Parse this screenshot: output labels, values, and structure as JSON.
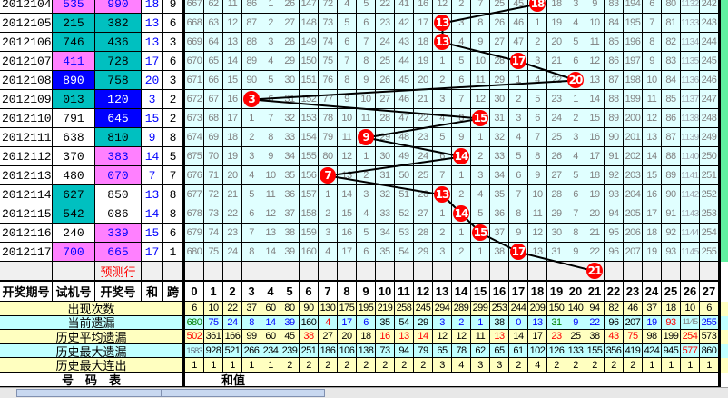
{
  "colors": {
    "pink": "#ff80ff",
    "teal": "#00c0c0",
    "blue": "#0000ff",
    "white": "#ffffff",
    "ball": "#ff0000",
    "grid_bg": "#e0ffff",
    "stat_yellow": "#ffffc0",
    "stat_cyan": "#c0ffff",
    "right_strip": "#60f0a0"
  },
  "rows": [
    {
      "period": "2012104",
      "trial": "535",
      "trial_color": "pink",
      "draw": "990",
      "draw_color": "pink",
      "sum": "18",
      "span": "9"
    },
    {
      "period": "2012105",
      "trial": "215",
      "trial_color": "teal",
      "draw": "382",
      "draw_color": "teal",
      "sum": "13",
      "span": "6"
    },
    {
      "period": "2012106",
      "trial": "746",
      "trial_color": "teal",
      "draw": "436",
      "draw_color": "teal",
      "sum": "13",
      "span": "3"
    },
    {
      "period": "2012107",
      "trial": "411",
      "trial_color": "pink",
      "draw": "728",
      "draw_color": "teal",
      "sum": "17",
      "span": "6"
    },
    {
      "period": "2012108",
      "trial": "890",
      "trial_color": "blue",
      "draw": "758",
      "draw_color": "teal",
      "sum": "20",
      "span": "3"
    },
    {
      "period": "2012109",
      "trial": "013",
      "trial_color": "teal",
      "draw": "120",
      "draw_color": "blue",
      "sum": "3",
      "span": "2"
    },
    {
      "period": "2012110",
      "trial": "791",
      "trial_color": "white",
      "draw": "645",
      "draw_color": "blue",
      "sum": "15",
      "span": "2"
    },
    {
      "period": "2012111",
      "trial": "638",
      "trial_color": "white",
      "draw": "810",
      "draw_color": "teal",
      "sum": "9",
      "span": "8"
    },
    {
      "period": "2012112",
      "trial": "370",
      "trial_color": "white",
      "draw": "383",
      "draw_color": "pink",
      "sum": "14",
      "span": "5"
    },
    {
      "period": "2012113",
      "trial": "480",
      "trial_color": "white",
      "draw": "070",
      "draw_color": "pink",
      "sum": "7",
      "span": "7"
    },
    {
      "period": "2012114",
      "trial": "627",
      "trial_color": "teal",
      "draw": "850",
      "draw_color": "white",
      "sum": "13",
      "span": "8"
    },
    {
      "period": "2012115",
      "trial": "542",
      "trial_color": "teal",
      "draw": "086",
      "draw_color": "white",
      "sum": "14",
      "span": "8"
    },
    {
      "period": "2012116",
      "trial": "240",
      "trial_color": "white",
      "draw": "339",
      "draw_color": "pink",
      "sum": "15",
      "span": "6"
    },
    {
      "period": "2012117",
      "trial": "700",
      "trial_color": "pink",
      "draw": "665",
      "draw_color": "pink",
      "sum": "17",
      "span": "1"
    }
  ],
  "grid": [
    [
      667,
      62,
      11,
      86,
      1,
      26,
      147,
      72,
      4,
      5,
      22,
      41,
      16,
      12,
      2,
      7,
      25,
      45,
      null,
      18,
      3,
      9,
      83,
      194,
      6,
      80,
      1132,
      242
    ],
    [
      668,
      63,
      12,
      87,
      2,
      27,
      148,
      73,
      5,
      6,
      23,
      42,
      17,
      null,
      3,
      8,
      26,
      46,
      1,
      19,
      4,
      10,
      84,
      195,
      7,
      81,
      1133,
      243
    ],
    [
      669,
      64,
      13,
      88,
      3,
      28,
      149,
      74,
      6,
      7,
      24,
      43,
      18,
      null,
      4,
      9,
      27,
      47,
      2,
      20,
      5,
      11,
      85,
      196,
      8,
      82,
      1134,
      244
    ],
    [
      670,
      65,
      14,
      89,
      4,
      29,
      150,
      75,
      7,
      8,
      25,
      44,
      19,
      1,
      5,
      10,
      28,
      null,
      3,
      21,
      6,
      12,
      86,
      197,
      9,
      83,
      1135,
      245
    ],
    [
      671,
      66,
      15,
      90,
      5,
      30,
      151,
      76,
      8,
      9,
      26,
      45,
      20,
      2,
      6,
      11,
      29,
      1,
      4,
      22,
      null,
      13,
      87,
      198,
      10,
      84,
      1136,
      246
    ],
    [
      672,
      67,
      16,
      null,
      6,
      31,
      152,
      77,
      9,
      10,
      27,
      46,
      21,
      3,
      7,
      12,
      30,
      2,
      5,
      23,
      1,
      14,
      88,
      199,
      11,
      85,
      1137,
      247
    ],
    [
      673,
      68,
      17,
      1,
      7,
      32,
      153,
      78,
      10,
      11,
      28,
      47,
      22,
      4,
      8,
      null,
      31,
      3,
      6,
      24,
      2,
      15,
      89,
      200,
      12,
      86,
      1138,
      248
    ],
    [
      674,
      69,
      18,
      2,
      8,
      33,
      154,
      79,
      11,
      null,
      29,
      48,
      23,
      5,
      9,
      1,
      32,
      4,
      7,
      25,
      3,
      16,
      90,
      201,
      13,
      87,
      1139,
      249
    ],
    [
      675,
      70,
      19,
      3,
      9,
      34,
      155,
      80,
      12,
      1,
      30,
      49,
      24,
      6,
      null,
      2,
      33,
      5,
      8,
      26,
      4,
      17,
      91,
      202,
      14,
      88,
      1140,
      250
    ],
    [
      676,
      71,
      20,
      4,
      10,
      35,
      156,
      null,
      13,
      2,
      31,
      50,
      25,
      7,
      1,
      3,
      34,
      6,
      9,
      27,
      5,
      18,
      92,
      203,
      15,
      89,
      1141,
      251
    ],
    [
      677,
      72,
      21,
      5,
      11,
      36,
      157,
      1,
      14,
      3,
      32,
      51,
      26,
      null,
      2,
      4,
      35,
      7,
      10,
      28,
      6,
      19,
      93,
      204,
      16,
      90,
      1142,
      252
    ],
    [
      678,
      73,
      22,
      6,
      12,
      37,
      158,
      2,
      15,
      4,
      33,
      52,
      27,
      1,
      null,
      5,
      36,
      8,
      11,
      29,
      7,
      20,
      94,
      205,
      17,
      91,
      1143,
      253
    ],
    [
      679,
      74,
      23,
      7,
      13,
      38,
      159,
      3,
      16,
      5,
      34,
      53,
      28,
      2,
      1,
      null,
      37,
      9,
      12,
      30,
      8,
      21,
      95,
      206,
      18,
      92,
      1144,
      254
    ],
    [
      680,
      75,
      24,
      8,
      14,
      39,
      160,
      4,
      17,
      6,
      35,
      54,
      29,
      3,
      2,
      1,
      38,
      null,
      13,
      31,
      9,
      22,
      96,
      207,
      19,
      93,
      1145,
      255
    ]
  ],
  "prediction": {
    "label": "预测行",
    "sum": "21"
  },
  "headers": {
    "period": "开奖期号",
    "trial": "试机号",
    "draw": "开奖号",
    "sum": "和",
    "span": "跨",
    "columns": [
      "0",
      "1",
      "2",
      "3",
      "4",
      "5",
      "6",
      "7",
      "8",
      "9",
      "10",
      "11",
      "12",
      "13",
      "14",
      "15",
      "16",
      "17",
      "18",
      "19",
      "20",
      "21",
      "22",
      "23",
      "24",
      "25",
      "26",
      "27"
    ]
  },
  "stats": [
    {
      "label": "出现次数",
      "values": [
        6,
        10,
        22,
        37,
        60,
        80,
        90,
        130,
        175,
        195,
        219,
        258,
        245,
        294,
        289,
        299,
        253,
        244,
        209,
        150,
        140,
        94,
        82,
        46,
        37,
        18,
        10,
        6
      ],
      "colors": []
    },
    {
      "label": "当前遗漏",
      "values": [
        680,
        75,
        24,
        8,
        14,
        39,
        160,
        4,
        17,
        6,
        35,
        54,
        29,
        3,
        2,
        1,
        38,
        0,
        13,
        31,
        9,
        22,
        96,
        207,
        19,
        93,
        1145,
        255
      ],
      "colors": [
        "#008000",
        "#0000ff",
        "#0000ff",
        "#0000ff",
        "#0000ff",
        "#0000ff",
        "#000",
        "#ff0000",
        "#0000ff",
        "#0000ff",
        "#000",
        "#000",
        "#000",
        "#0000ff",
        "#0000ff",
        "#0000ff",
        "#000",
        "#0000ff",
        "#0000ff",
        "#008000",
        "#0000ff",
        "#0000ff",
        "#000",
        "#000",
        "#0000ff",
        "#ff0000",
        "#808080",
        "#0000ff"
      ]
    },
    {
      "label": "历史平均遗漏",
      "values": [
        502,
        361,
        166,
        99,
        60,
        45,
        38,
        27,
        20,
        18,
        16,
        13,
        14,
        12,
        12,
        11,
        13,
        14,
        17,
        23,
        25,
        38,
        43,
        75,
        98,
        199,
        254,
        573
      ],
      "colors": [
        "#ff0000",
        "#000",
        "#000",
        "#000",
        "#000",
        "#000",
        "#ff0000",
        "#000",
        "#000",
        "#000",
        "#ff0000",
        "#ff0000",
        "#ff0000",
        "#000",
        "#000",
        "#000",
        "#ff0000",
        "#000",
        "#000",
        "#ff0000",
        "#000",
        "#000",
        "#ff0000",
        "#ff0000",
        "#000",
        "#000",
        "#ff0000",
        "#000"
      ]
    },
    {
      "label": "历史最大遗漏",
      "values": [
        1583,
        928,
        521,
        266,
        234,
        239,
        251,
        186,
        106,
        138,
        73,
        94,
        79,
        65,
        78,
        62,
        65,
        61,
        102,
        126,
        133,
        155,
        356,
        419,
        424,
        945,
        577,
        860
      ],
      "colors": [
        "#607080",
        "#000",
        "#000",
        "#000",
        "#000",
        "#000",
        "#000",
        "#000",
        "#000",
        "#000",
        "#000",
        "#000",
        "#000",
        "#000",
        "#000",
        "#000",
        "#000",
        "#000",
        "#000",
        "#000",
        "#000",
        "#000",
        "#000",
        "#000",
        "#000",
        "#000",
        "#ff0000",
        "#000"
      ]
    },
    {
      "label": "历史最大连出",
      "values": [
        1,
        1,
        1,
        1,
        1,
        2,
        2,
        2,
        2,
        2,
        2,
        2,
        2,
        3,
        4,
        3,
        3,
        2,
        4,
        2,
        2,
        2,
        2,
        2,
        1,
        1,
        1,
        1
      ],
      "colors": []
    }
  ],
  "footer": {
    "left": "号　码　表",
    "right": "和值"
  }
}
